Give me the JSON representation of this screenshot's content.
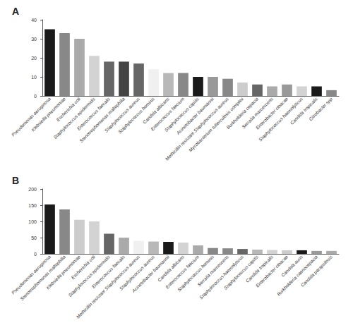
{
  "chart_data": [
    {
      "type": "bar",
      "title": "A",
      "categories": [
        "Pseudomonas aeruginosa",
        "Klebsiella pneumoniae",
        "Escherichia coli",
        "Staphylococcus epidermidis",
        "Enterococcus faecalis",
        "Stenotrophomonas maltophilia",
        "Staphylococcus aureus",
        "Staphylococcus hominis",
        "Candida albicans",
        "Enterococcus faecium",
        "Staphylococcus capitis",
        "Acinetobacter baumannii",
        "Methicillin resistant Staphylococcus aureus",
        "Mycobacterium tuberculosis complex",
        "Burkholderia cepacia",
        "Serratia marcescens",
        "Enterobacter cloacae",
        "Staphylococcus haemolyticus",
        "Candida tropicalis",
        "Citrobacter spp"
      ],
      "values": [
        35,
        33,
        30,
        21,
        18,
        18,
        17,
        14,
        12,
        12,
        10,
        10,
        9,
        7,
        6,
        5,
        6,
        5,
        5,
        3
      ],
      "colors": [
        "#1a1a1a",
        "#888888",
        "#aaaaaa",
        "#d3d3d3",
        "#666666",
        "#444444",
        "#666666",
        "#f0f0f0",
        "#b8b8b8",
        "#888888",
        "#1a1a1a",
        "#999999",
        "#888888",
        "#cccccc",
        "#666666",
        "#aaaaaa",
        "#999999",
        "#d3d3d3",
        "#1a1a1a",
        "#888888"
      ],
      "ylim": [
        0,
        40
      ],
      "yticks": [
        0,
        10,
        20,
        30,
        40
      ],
      "grid": false
    },
    {
      "type": "bar",
      "title": "B",
      "categories": [
        "Pseudomonas aeruginosa",
        "Stenotrophomonas maltophilia",
        "Klebsiella pneumoniae",
        "Escherichia coli",
        "Staphylococcus epidermidis",
        "Enterococcus faecalis",
        "Methicillin resistant Staphylococcus aureus",
        "Staphylococcus aureus",
        "Acinetobacter baumannii",
        "Candida albicans",
        "Enterococcus faecium",
        "Staphylococcus hominis",
        "Serratia marcescens",
        "Staphylococcus haemolyticus",
        "Staphylococcus capitis",
        "Candida tropicalis",
        "Enterobacter cloacae",
        "Candida auris",
        "Burkholderia caenocepacia",
        "Candida parapsilosis"
      ],
      "values": [
        152,
        137,
        105,
        100,
        62,
        50,
        40,
        38,
        37,
        35,
        26,
        18,
        17,
        15,
        13,
        12,
        11,
        11,
        9,
        9
      ],
      "colors": [
        "#1a1a1a",
        "#888888",
        "#cccccc",
        "#d3d3d3",
        "#666666",
        "#aaaaaa",
        "#f0f0f0",
        "#b8b8b8",
        "#1a1a1a",
        "#d3d3d3",
        "#aaaaaa",
        "#888888",
        "#888888",
        "#666666",
        "#b8b8b8",
        "#d3d3d3",
        "#cccccc",
        "#1a1a1a",
        "#999999",
        "#aaaaaa"
      ],
      "ylim": [
        0,
        200
      ],
      "yticks": [
        0,
        50,
        100,
        150,
        200
      ],
      "grid": false
    }
  ]
}
